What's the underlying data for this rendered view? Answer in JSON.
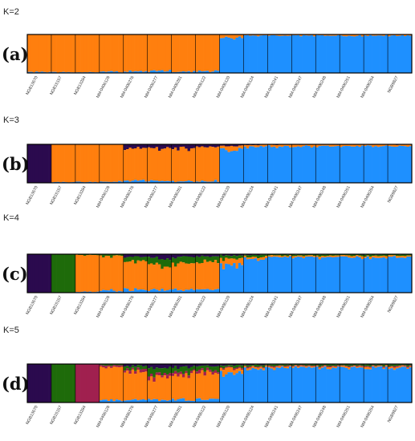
{
  "chart_data": {
    "type": "bar",
    "stacked": true,
    "normalized": true,
    "ylim": [
      0,
      1
    ],
    "colors": {
      "orange": "#FF7F0E",
      "blue": "#1E90FF",
      "purple": "#2B0A4E",
      "green": "#1E6B0A",
      "crimson": "#A0204F"
    },
    "categories": [
      "NGB13670",
      "NGB15157",
      "NGB13284",
      "NM-0406128",
      "NM-0406276",
      "NM-0406277",
      "NM-0406281",
      "NM-0406122",
      "NM-0406120",
      "NM-0406124",
      "NM-0406241",
      "NM-0406247",
      "NM-0406248",
      "NM-0406251",
      "NM-0406254",
      "NGB9827"
    ],
    "panels": [
      {
        "letter": "(a)",
        "k_label": "K=2",
        "k": 2,
        "series": [
          {
            "name": "",
            "color": "#FF7F0E",
            "values": [
              0.98,
              0.98,
              0.98,
              0.97,
              0.96,
              0.95,
              0.97,
              0.96,
              0.1,
              0.03,
              0.03,
              0.03,
              0.03,
              0.03,
              0.03,
              0.03
            ]
          },
          {
            "name": "",
            "color": "#1E90FF",
            "values": [
              0.02,
              0.02,
              0.02,
              0.03,
              0.04,
              0.05,
              0.03,
              0.04,
              0.9,
              0.97,
              0.97,
              0.97,
              0.97,
              0.97,
              0.97,
              0.97
            ]
          }
        ]
      },
      {
        "letter": "(b)",
        "k_label": "K=3",
        "k": 3,
        "series": [
          {
            "name": "",
            "color": "#2B0A4E",
            "values": [
              1.0,
              0.0,
              0.0,
              0.0,
              0.1,
              0.12,
              0.1,
              0.08,
              0.05,
              0.02,
              0.01,
              0.01,
              0.01,
              0.01,
              0.01,
              0.01
            ]
          },
          {
            "name": "",
            "color": "#FF7F0E",
            "values": [
              0.0,
              0.98,
              0.98,
              0.97,
              0.85,
              0.82,
              0.86,
              0.88,
              0.12,
              0.05,
              0.04,
              0.04,
              0.04,
              0.04,
              0.04,
              0.04
            ]
          },
          {
            "name": "",
            "color": "#1E90FF",
            "values": [
              0.0,
              0.02,
              0.02,
              0.03,
              0.05,
              0.06,
              0.04,
              0.04,
              0.83,
              0.93,
              0.95,
              0.95,
              0.95,
              0.95,
              0.95,
              0.95
            ]
          }
        ]
      },
      {
        "letter": "(c)",
        "k_label": "K=4",
        "k": 4,
        "series": [
          {
            "name": "",
            "color": "#2B0A4E",
            "values": [
              1.0,
              0.0,
              0.0,
              0.0,
              0.06,
              0.1,
              0.08,
              0.06,
              0.03,
              0.02,
              0.01,
              0.01,
              0.01,
              0.01,
              0.01,
              0.01
            ]
          },
          {
            "name": "",
            "color": "#1E6B0A",
            "values": [
              0.0,
              1.0,
              0.02,
              0.05,
              0.12,
              0.18,
              0.15,
              0.14,
              0.08,
              0.05,
              0.03,
              0.03,
              0.03,
              0.03,
              0.03,
              0.03
            ]
          },
          {
            "name": "",
            "color": "#FF7F0E",
            "values": [
              0.0,
              0.0,
              0.96,
              0.9,
              0.75,
              0.65,
              0.7,
              0.72,
              0.14,
              0.05,
              0.04,
              0.04,
              0.04,
              0.04,
              0.04,
              0.04
            ]
          },
          {
            "name": "",
            "color": "#1E90FF",
            "values": [
              0.0,
              0.0,
              0.02,
              0.05,
              0.07,
              0.07,
              0.07,
              0.08,
              0.75,
              0.88,
              0.92,
              0.92,
              0.92,
              0.92,
              0.92,
              0.92
            ]
          }
        ]
      },
      {
        "letter": "(d)",
        "k_label": "K=5",
        "k": 5,
        "series": [
          {
            "name": "",
            "color": "#2B0A4E",
            "values": [
              1.0,
              0.0,
              0.0,
              0.0,
              0.05,
              0.1,
              0.08,
              0.05,
              0.03,
              0.02,
              0.01,
              0.01,
              0.01,
              0.01,
              0.01,
              0.01
            ]
          },
          {
            "name": "",
            "color": "#1E6B0A",
            "values": [
              0.0,
              1.0,
              0.0,
              0.03,
              0.08,
              0.15,
              0.12,
              0.1,
              0.06,
              0.04,
              0.03,
              0.03,
              0.03,
              0.03,
              0.03,
              0.03
            ]
          },
          {
            "name": "",
            "color": "#A0204F",
            "values": [
              0.0,
              0.0,
              1.0,
              0.04,
              0.06,
              0.08,
              0.06,
              0.06,
              0.03,
              0.02,
              0.02,
              0.02,
              0.02,
              0.02,
              0.02,
              0.02
            ]
          },
          {
            "name": "",
            "color": "#FF7F0E",
            "values": [
              0.0,
              0.0,
              0.0,
              0.88,
              0.74,
              0.6,
              0.67,
              0.71,
              0.13,
              0.04,
              0.03,
              0.03,
              0.03,
              0.03,
              0.03,
              0.03
            ]
          },
          {
            "name": "",
            "color": "#1E90FF",
            "values": [
              0.0,
              0.0,
              0.0,
              0.05,
              0.07,
              0.07,
              0.07,
              0.08,
              0.75,
              0.88,
              0.91,
              0.91,
              0.91,
              0.91,
              0.91,
              0.91
            ]
          }
        ]
      }
    ]
  }
}
